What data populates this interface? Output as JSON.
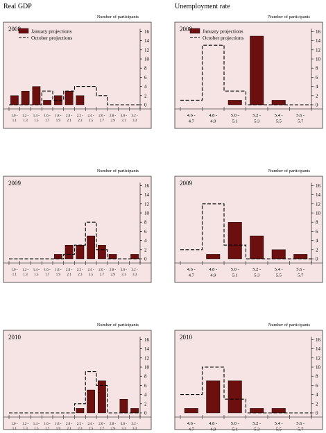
{
  "columns": {
    "left_title": "Real GDP",
    "right_title": "Unemployment rate"
  },
  "colors": {
    "panel_bg": "#f6e4e4",
    "bar_fill": "#6b0f0f",
    "line": "#000000"
  },
  "chart_data": [
    {
      "type": "bar",
      "year": "2008",
      "ylabel": "Number of participants",
      "ylim": [
        0,
        16
      ],
      "yticks": [
        0,
        2,
        4,
        6,
        8,
        10,
        12,
        14,
        16
      ],
      "legend": {
        "bar": "January projections",
        "line": "October projections"
      },
      "categories": [
        [
          "1.0 -",
          "1.1"
        ],
        [
          "1.2 -",
          "1.3"
        ],
        [
          "1.4 -",
          "1.5"
        ],
        [
          "1.6 -",
          "1.7"
        ],
        [
          "1.8 -",
          "1.9"
        ],
        [
          "2.0 -",
          "2.1"
        ],
        [
          "2.2 -",
          "2.3"
        ],
        [
          "2.4 -",
          "2.5"
        ],
        [
          "2.6 -",
          "2.7"
        ],
        [
          "2.8 -",
          "2.9"
        ],
        [
          "3.0 -",
          "3.1"
        ],
        [
          "3.2 -",
          "3.3"
        ]
      ],
      "series": [
        {
          "name": "January projections",
          "values": [
            2,
            3,
            4,
            1,
            2,
            3,
            2,
            0,
            0,
            0,
            0,
            0
          ]
        },
        {
          "name": "October projections",
          "values": [
            0,
            0,
            0,
            3,
            1,
            3,
            4,
            4,
            2,
            0,
            0,
            0
          ]
        }
      ]
    },
    {
      "type": "bar",
      "year": "2008",
      "ylabel": "Number of participants",
      "ylim": [
        0,
        16
      ],
      "yticks": [
        0,
        2,
        4,
        6,
        8,
        10,
        12,
        14,
        16
      ],
      "legend": {
        "bar": "January projections",
        "line": "October projections"
      },
      "categories": [
        [
          "4.6 -",
          "4.7"
        ],
        [
          "4.8 -",
          "4.9"
        ],
        [
          "5.0 -",
          "5.1"
        ],
        [
          "5.2 -",
          "5.3"
        ],
        [
          "5.4 -",
          "5.5"
        ],
        [
          "5.6 -",
          "5.7"
        ]
      ],
      "series": [
        {
          "name": "January projections",
          "values": [
            0,
            0,
            1,
            15,
            1,
            0
          ]
        },
        {
          "name": "October projections",
          "values": [
            1,
            13,
            3,
            0,
            0,
            0
          ]
        }
      ]
    },
    {
      "type": "bar",
      "year": "2009",
      "ylabel": "Number of participants",
      "ylim": [
        0,
        16
      ],
      "yticks": [
        0,
        2,
        4,
        6,
        8,
        10,
        12,
        14,
        16
      ],
      "categories": [
        [
          "1.0 -",
          "1.1"
        ],
        [
          "1.2 -",
          "1.3"
        ],
        [
          "1.4 -",
          "1.5"
        ],
        [
          "1.6 -",
          "1.7"
        ],
        [
          "1.8 -",
          "1.9"
        ],
        [
          "2.0 -",
          "2.1"
        ],
        [
          "2.2 -",
          "2.3"
        ],
        [
          "2.4 -",
          "2.5"
        ],
        [
          "2.6 -",
          "2.7"
        ],
        [
          "2.8 -",
          "2.9"
        ],
        [
          "3.0 -",
          "3.1"
        ],
        [
          "3.2 -",
          "3.3"
        ]
      ],
      "series": [
        {
          "name": "January projections",
          "values": [
            0,
            0,
            0,
            0,
            1,
            3,
            3,
            5,
            3,
            1,
            0,
            1
          ]
        },
        {
          "name": "October projections",
          "values": [
            0,
            0,
            0,
            0,
            0,
            1,
            3,
            8,
            2,
            0,
            0,
            0
          ]
        }
      ]
    },
    {
      "type": "bar",
      "year": "2009",
      "ylabel": "Number of participants",
      "ylim": [
        0,
        16
      ],
      "yticks": [
        0,
        2,
        4,
        6,
        8,
        10,
        12,
        14,
        16
      ],
      "categories": [
        [
          "4.6 -",
          "4.7"
        ],
        [
          "4.8 -",
          "4.9"
        ],
        [
          "5.0 -",
          "5.1"
        ],
        [
          "5.2 -",
          "5.3"
        ],
        [
          "5.4 -",
          "5.5"
        ],
        [
          "5.6 -",
          "5.7"
        ]
      ],
      "series": [
        {
          "name": "January projections",
          "values": [
            0,
            1,
            8,
            5,
            2,
            1
          ]
        },
        {
          "name": "October projections",
          "values": [
            2,
            12,
            3,
            0,
            0,
            0
          ]
        }
      ]
    },
    {
      "type": "bar",
      "year": "2010",
      "ylabel": "Number of participants",
      "ylim": [
        0,
        16
      ],
      "yticks": [
        0,
        2,
        4,
        6,
        8,
        10,
        12,
        14,
        16
      ],
      "categories": [
        [
          "1.0 -",
          "1.1"
        ],
        [
          "1.2 -",
          "1.3"
        ],
        [
          "1.4 -",
          "1.5"
        ],
        [
          "1.6 -",
          "1.7"
        ],
        [
          "1.8 -",
          "1.9"
        ],
        [
          "2.0 -",
          "2.1"
        ],
        [
          "2.2 -",
          "2.3"
        ],
        [
          "2.4 -",
          "2.5"
        ],
        [
          "2.6 -",
          "2.7"
        ],
        [
          "2.8 -",
          "2.9"
        ],
        [
          "3.0 -",
          "3.1"
        ],
        [
          "3.2 -",
          "3.3"
        ]
      ],
      "series": [
        {
          "name": "January projections",
          "values": [
            0,
            0,
            0,
            0,
            0,
            0,
            1,
            5,
            7,
            0,
            3,
            1
          ]
        },
        {
          "name": "October projections",
          "values": [
            0,
            0,
            0,
            0,
            0,
            0,
            2,
            9,
            6,
            0,
            0,
            0
          ]
        }
      ]
    },
    {
      "type": "bar",
      "year": "2010",
      "ylabel": "Number of participants",
      "ylim": [
        0,
        16
      ],
      "yticks": [
        0,
        2,
        4,
        6,
        8,
        10,
        12,
        14,
        16
      ],
      "categories": [
        [
          "4.6 -",
          "4.7"
        ],
        [
          "4.8 -",
          "4.9"
        ],
        [
          "5.0 -",
          "5.1"
        ],
        [
          "5.2 -",
          "5.3"
        ],
        [
          "5.4 -",
          "5.5"
        ],
        [
          "5.6 -",
          "5.7"
        ]
      ],
      "series": [
        {
          "name": "January projections",
          "values": [
            1,
            7,
            7,
            1,
            1,
            0
          ]
        },
        {
          "name": "October projections",
          "values": [
            4,
            10,
            3,
            0,
            0,
            0
          ]
        }
      ]
    }
  ]
}
